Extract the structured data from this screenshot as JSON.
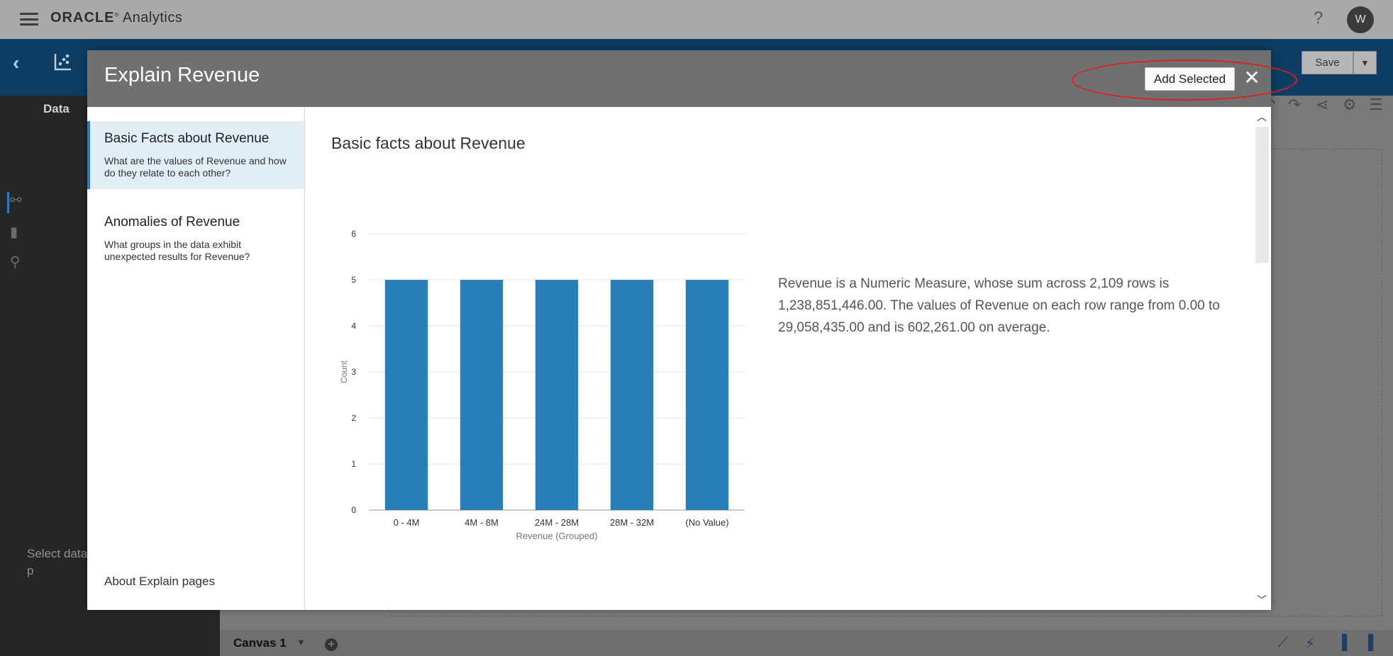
{
  "app": {
    "brand_oracle": "ORACLE",
    "brand_product": "Analytics",
    "avatar_initial": "W",
    "help_glyph": "?",
    "save_label": "Save"
  },
  "sidebar": {
    "data_label": "Data",
    "hint": "Select data p"
  },
  "canvas": {
    "tab_label": "Canvas 1"
  },
  "modal": {
    "title": "Explain Revenue",
    "add_selected_label": "Add Selected",
    "close_glyph": "✕",
    "nav": [
      {
        "title": "Basic Facts about Revenue",
        "description": "What are the values of Revenue and how do they relate to each other?"
      },
      {
        "title": "Anomalies of Revenue",
        "description": "What groups in the data exhibit unexpected results for Revenue?"
      }
    ],
    "about_link": "About Explain pages",
    "section_title": "Basic facts about Revenue",
    "description": "Revenue is a Numeric Measure, whose sum across 2,109 rows is 1,238,851,446.00. The values of Revenue on each row range from 0.00 to 29,058,435.00 and is 602,261.00 on average."
  },
  "colors": {
    "bar": "#2a7fb8",
    "annotation": "#e0201b",
    "header_bg": "#707070",
    "active_nav": "#e2eef5"
  },
  "chart_data": {
    "type": "bar",
    "categories": [
      "0 - 4M",
      "4M - 8M",
      "24M - 28M",
      "28M - 32M",
      "(No Value)"
    ],
    "values": [
      5,
      5,
      5,
      5,
      5
    ],
    "xlabel": "Revenue (Grouped)",
    "ylabel": "Count",
    "ylim": [
      0,
      6
    ],
    "yticks": [
      0,
      1,
      2,
      3,
      4,
      5,
      6
    ],
    "grid": true
  }
}
